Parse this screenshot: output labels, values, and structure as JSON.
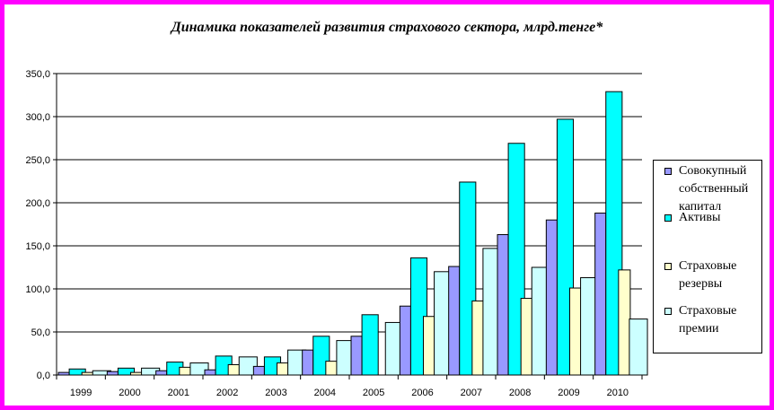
{
  "chart_data": {
    "type": "bar",
    "title": "Динамика показателей развития страхового сектора, млрд.тенге*",
    "xlabel": "",
    "ylabel": "",
    "ylim": [
      0,
      350
    ],
    "grid": true,
    "legend_position": "right",
    "categories": [
      "1999",
      "2000",
      "2001",
      "2002",
      "2003",
      "2004",
      "2005",
      "2006",
      "2007",
      "2008",
      "2009",
      "2010"
    ],
    "y_tick_labels": [
      "0,0",
      "50,0",
      "100,0",
      "150,0",
      "200,0",
      "250,0",
      "300,0",
      "350,0"
    ],
    "y_tick_values": [
      0,
      50,
      100,
      150,
      200,
      250,
      300,
      350
    ],
    "series": [
      {
        "name": "Совокупный собственный капитал",
        "color": "#9999ff",
        "values": [
          3,
          4,
          5,
          6,
          10,
          29,
          45,
          80,
          126,
          163,
          180,
          188
        ]
      },
      {
        "name": "Активы",
        "color": "#00ffff",
        "values": [
          7,
          8,
          15,
          22,
          21,
          45,
          70,
          136,
          224,
          269,
          297,
          329
        ]
      },
      {
        "name": "Страховые резервы",
        "color": "#ffffcc",
        "values": [
          3,
          3,
          9,
          12,
          14,
          16,
          0,
          68,
          86,
          89,
          101,
          122
        ]
      },
      {
        "name": "Страховые премии",
        "color": "#ccffff",
        "values": [
          5,
          8,
          14,
          21,
          29,
          40,
          61,
          120,
          147,
          125,
          113,
          65
        ]
      }
    ]
  }
}
